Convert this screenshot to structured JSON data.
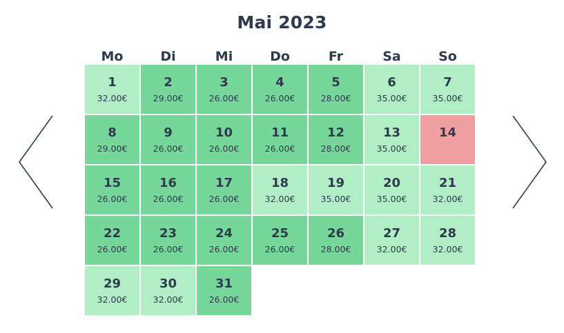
{
  "calendar": {
    "month_title": "Mai 2023",
    "weekdays": [
      "Mo",
      "Di",
      "Mi",
      "Do",
      "Fr",
      "Sa",
      "So"
    ],
    "colors": {
      "low": "#77d79b",
      "high": "#b1eec6",
      "unavailable": "#f09fa3"
    },
    "weeks": [
      [
        {
          "day": "1",
          "price": "32.00€",
          "level": "light"
        },
        {
          "day": "2",
          "price": "29.00€",
          "level": "mid"
        },
        {
          "day": "3",
          "price": "26.00€",
          "level": "mid"
        },
        {
          "day": "4",
          "price": "26.00€",
          "level": "mid"
        },
        {
          "day": "5",
          "price": "28.00€",
          "level": "mid"
        },
        {
          "day": "6",
          "price": "35.00€",
          "level": "light"
        },
        {
          "day": "7",
          "price": "35.00€",
          "level": "light"
        }
      ],
      [
        {
          "day": "8",
          "price": "29.00€",
          "level": "mid"
        },
        {
          "day": "9",
          "price": "26.00€",
          "level": "mid"
        },
        {
          "day": "10",
          "price": "26.00€",
          "level": "mid"
        },
        {
          "day": "11",
          "price": "26.00€",
          "level": "mid"
        },
        {
          "day": "12",
          "price": "28.00€",
          "level": "mid"
        },
        {
          "day": "13",
          "price": "35.00€",
          "level": "light"
        },
        {
          "day": "14",
          "price": "",
          "level": "unavail"
        }
      ],
      [
        {
          "day": "15",
          "price": "26.00€",
          "level": "mid"
        },
        {
          "day": "16",
          "price": "26.00€",
          "level": "mid"
        },
        {
          "day": "17",
          "price": "26.00€",
          "level": "mid"
        },
        {
          "day": "18",
          "price": "32.00€",
          "level": "light"
        },
        {
          "day": "19",
          "price": "35.00€",
          "level": "light"
        },
        {
          "day": "20",
          "price": "35.00€",
          "level": "light"
        },
        {
          "day": "21",
          "price": "32.00€",
          "level": "light"
        }
      ],
      [
        {
          "day": "22",
          "price": "26.00€",
          "level": "mid"
        },
        {
          "day": "23",
          "price": "26.00€",
          "level": "mid"
        },
        {
          "day": "24",
          "price": "26.00€",
          "level": "mid"
        },
        {
          "day": "25",
          "price": "26.00€",
          "level": "mid"
        },
        {
          "day": "26",
          "price": "28.00€",
          "level": "mid"
        },
        {
          "day": "27",
          "price": "32.00€",
          "level": "light"
        },
        {
          "day": "28",
          "price": "32.00€",
          "level": "light"
        }
      ],
      [
        {
          "day": "29",
          "price": "32.00€",
          "level": "light"
        },
        {
          "day": "30",
          "price": "32.00€",
          "level": "light"
        },
        {
          "day": "31",
          "price": "26.00€",
          "level": "mid"
        }
      ]
    ]
  },
  "nav": {
    "prev_icon": "chevron-left-icon",
    "next_icon": "chevron-right-icon"
  }
}
